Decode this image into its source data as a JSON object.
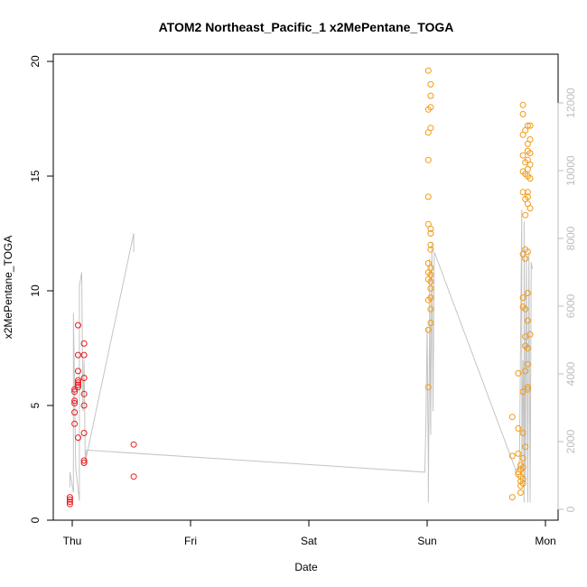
{
  "chart_data": {
    "type": "scatter",
    "title": "ATOM2 Northeast_Pacific_1 x2MePentane_TOGA",
    "xlabel": "Date",
    "ylabel": "x2MePentane_TOGA",
    "x_axis": {
      "type": "date",
      "range": [
        "Thu 00:00",
        "Mon 03:00"
      ],
      "ticks": [
        {
          "label": "Thu",
          "day": 0
        },
        {
          "label": "Fri",
          "day": 1
        },
        {
          "label": "Sat",
          "day": 2
        },
        {
          "label": "Sun",
          "day": 3
        },
        {
          "label": "Mon",
          "day": 4
        }
      ]
    },
    "ylim": [
      0,
      20
    ],
    "yticks": [
      0,
      5,
      10,
      15,
      20
    ],
    "y2lim": [
      0,
      12500
    ],
    "y2ticks": [
      0,
      2000,
      4000,
      6000,
      8000,
      10000,
      12000
    ],
    "colors": {
      "series_red": "#e8191c",
      "series_orange": "#f29a14",
      "secondary_line": "#c4c4c4",
      "secondary_axis": "#bdbdbd"
    },
    "series": [
      {
        "color": "#e8191c",
        "points": [
          {
            "day": -0.02,
            "y": 0.7
          },
          {
            "day": -0.02,
            "y": 0.8
          },
          {
            "day": -0.02,
            "y": 0.9
          },
          {
            "day": -0.02,
            "y": 1.0
          },
          {
            "day": 0.02,
            "y": 4.2
          },
          {
            "day": 0.02,
            "y": 4.7
          },
          {
            "day": 0.02,
            "y": 5.1
          },
          {
            "day": 0.02,
            "y": 5.2
          },
          {
            "day": 0.02,
            "y": 5.6
          },
          {
            "day": 0.02,
            "y": 5.7
          },
          {
            "day": 0.05,
            "y": 3.6
          },
          {
            "day": 0.05,
            "y": 5.8
          },
          {
            "day": 0.05,
            "y": 5.9
          },
          {
            "day": 0.05,
            "y": 6.0
          },
          {
            "day": 0.05,
            "y": 6.1
          },
          {
            "day": 0.05,
            "y": 6.5
          },
          {
            "day": 0.05,
            "y": 7.2
          },
          {
            "day": 0.05,
            "y": 8.5
          },
          {
            "day": 0.1,
            "y": 2.5
          },
          {
            "day": 0.1,
            "y": 2.6
          },
          {
            "day": 0.1,
            "y": 3.8
          },
          {
            "day": 0.1,
            "y": 5.0
          },
          {
            "day": 0.1,
            "y": 5.5
          },
          {
            "day": 0.1,
            "y": 6.2
          },
          {
            "day": 0.1,
            "y": 7.2
          },
          {
            "day": 0.1,
            "y": 7.7
          },
          {
            "day": 0.52,
            "y": 1.9
          },
          {
            "day": 0.52,
            "y": 3.3
          }
        ]
      },
      {
        "color": "#f29a14",
        "points": [
          {
            "day": 3.01,
            "y": 5.8
          },
          {
            "day": 3.01,
            "y": 8.3
          },
          {
            "day": 3.01,
            "y": 9.6
          },
          {
            "day": 3.01,
            "y": 10.5
          },
          {
            "day": 3.01,
            "y": 10.8
          },
          {
            "day": 3.01,
            "y": 11.2
          },
          {
            "day": 3.01,
            "y": 12.9
          },
          {
            "day": 3.01,
            "y": 14.1
          },
          {
            "day": 3.01,
            "y": 15.7
          },
          {
            "day": 3.01,
            "y": 16.9
          },
          {
            "day": 3.01,
            "y": 17.9
          },
          {
            "day": 3.01,
            "y": 19.6
          },
          {
            "day": 3.03,
            "y": 8.6
          },
          {
            "day": 3.03,
            "y": 9.2
          },
          {
            "day": 3.03,
            "y": 9.7
          },
          {
            "day": 3.03,
            "y": 10.1
          },
          {
            "day": 3.03,
            "y": 10.4
          },
          {
            "day": 3.03,
            "y": 10.7
          },
          {
            "day": 3.03,
            "y": 11.0
          },
          {
            "day": 3.03,
            "y": 11.8
          },
          {
            "day": 3.03,
            "y": 12.0
          },
          {
            "day": 3.03,
            "y": 12.5
          },
          {
            "day": 3.03,
            "y": 12.7
          },
          {
            "day": 3.03,
            "y": 17.1
          },
          {
            "day": 3.03,
            "y": 18.0
          },
          {
            "day": 3.03,
            "y": 18.5
          },
          {
            "day": 3.03,
            "y": 19.0
          },
          {
            "day": 3.72,
            "y": 1.0
          },
          {
            "day": 3.72,
            "y": 2.8
          },
          {
            "day": 3.72,
            "y": 4.5
          },
          {
            "day": 3.77,
            "y": 2.0
          },
          {
            "day": 3.77,
            "y": 2.1
          },
          {
            "day": 3.77,
            "y": 2.9
          },
          {
            "day": 3.77,
            "y": 4.0
          },
          {
            "day": 3.77,
            "y": 6.4
          },
          {
            "day": 3.79,
            "y": 1.2
          },
          {
            "day": 3.79,
            "y": 1.5
          },
          {
            "day": 3.79,
            "y": 1.7
          },
          {
            "day": 3.79,
            "y": 1.9
          },
          {
            "day": 3.79,
            "y": 2.2
          },
          {
            "day": 3.79,
            "y": 2.4
          },
          {
            "day": 3.81,
            "y": 1.6
          },
          {
            "day": 3.81,
            "y": 1.8
          },
          {
            "day": 3.81,
            "y": 2.3
          },
          {
            "day": 3.81,
            "y": 2.7
          },
          {
            "day": 3.81,
            "y": 3.8
          },
          {
            "day": 3.81,
            "y": 5.6
          },
          {
            "day": 3.81,
            "y": 9.3
          },
          {
            "day": 3.81,
            "y": 9.7
          },
          {
            "day": 3.81,
            "y": 11.6
          },
          {
            "day": 3.81,
            "y": 14.3
          },
          {
            "day": 3.81,
            "y": 15.2
          },
          {
            "day": 3.81,
            "y": 15.9
          },
          {
            "day": 3.81,
            "y": 16.8
          },
          {
            "day": 3.81,
            "y": 17.7
          },
          {
            "day": 3.81,
            "y": 18.1
          },
          {
            "day": 3.83,
            "y": 3.2
          },
          {
            "day": 3.83,
            "y": 6.5
          },
          {
            "day": 3.83,
            "y": 7.6
          },
          {
            "day": 3.83,
            "y": 8.0
          },
          {
            "day": 3.83,
            "y": 9.2
          },
          {
            "day": 3.83,
            "y": 11.4
          },
          {
            "day": 3.83,
            "y": 11.8
          },
          {
            "day": 3.83,
            "y": 13.3
          },
          {
            "day": 3.83,
            "y": 14.0
          },
          {
            "day": 3.83,
            "y": 15.1
          },
          {
            "day": 3.83,
            "y": 15.6
          },
          {
            "day": 3.83,
            "y": 17.0
          },
          {
            "day": 3.85,
            "y": 5.7
          },
          {
            "day": 3.85,
            "y": 5.8
          },
          {
            "day": 3.85,
            "y": 6.8
          },
          {
            "day": 3.85,
            "y": 7.5
          },
          {
            "day": 3.85,
            "y": 8.7
          },
          {
            "day": 3.85,
            "y": 9.9
          },
          {
            "day": 3.85,
            "y": 11.7
          },
          {
            "day": 3.85,
            "y": 13.8
          },
          {
            "day": 3.85,
            "y": 14.1
          },
          {
            "day": 3.85,
            "y": 14.3
          },
          {
            "day": 3.85,
            "y": 15.0
          },
          {
            "day": 3.85,
            "y": 15.3
          },
          {
            "day": 3.85,
            "y": 15.7
          },
          {
            "day": 3.85,
            "y": 16.1
          },
          {
            "day": 3.85,
            "y": 16.4
          },
          {
            "day": 3.85,
            "y": 17.2
          },
          {
            "day": 3.87,
            "y": 8.1
          },
          {
            "day": 3.87,
            "y": 13.6
          },
          {
            "day": 3.87,
            "y": 14.9
          },
          {
            "day": 3.87,
            "y": 15.5
          },
          {
            "day": 3.87,
            "y": 16.0
          },
          {
            "day": 3.87,
            "y": 16.6
          },
          {
            "day": 3.87,
            "y": 17.2
          }
        ]
      }
    ],
    "secondary_line": {
      "color": "#c4c4c4",
      "points": [
        {
          "day": -0.02,
          "y2": 650
        },
        {
          "day": -0.02,
          "y2": 1100
        },
        {
          "day": 0.01,
          "y2": 500
        },
        {
          "day": 0.01,
          "y2": 5800
        },
        {
          "day": 0.03,
          "y2": 1200
        },
        {
          "day": 0.06,
          "y2": 250
        },
        {
          "day": 0.06,
          "y2": 6600
        },
        {
          "day": 0.08,
          "y2": 7000
        },
        {
          "day": 0.09,
          "y2": 2900
        },
        {
          "day": 0.1,
          "y2": 4400
        },
        {
          "day": 0.11,
          "y2": 1400
        },
        {
          "day": 0.52,
          "y2": 8150
        },
        {
          "day": 0.52,
          "y2": 7600
        },
        {
          "day": 0.52,
          "y2": 8150
        },
        {
          "day": 0.11,
          "y2": 1400
        },
        {
          "day": 0.12,
          "y2": 1750
        },
        {
          "day": 2.98,
          "y2": 1100
        },
        {
          "day": 2.99,
          "y2": 2600
        },
        {
          "day": 3.0,
          "y2": 5400
        },
        {
          "day": 3.01,
          "y2": 1200
        },
        {
          "day": 3.01,
          "y2": 200
        },
        {
          "day": 3.02,
          "y2": 5000
        },
        {
          "day": 3.02,
          "y2": 7400
        },
        {
          "day": 3.03,
          "y2": 2200
        },
        {
          "day": 3.04,
          "y2": 7900
        },
        {
          "day": 3.05,
          "y2": 2900
        },
        {
          "day": 3.06,
          "y2": 7600
        },
        {
          "day": 3.75,
          "y2": 1150
        },
        {
          "day": 3.78,
          "y2": 1300
        },
        {
          "day": 3.8,
          "y2": 8850
        },
        {
          "day": 3.8,
          "y2": 1000
        },
        {
          "day": 3.81,
          "y2": 4400
        },
        {
          "day": 3.82,
          "y2": 200
        },
        {
          "day": 3.82,
          "y2": 8500
        },
        {
          "day": 3.83,
          "y2": 800
        },
        {
          "day": 3.84,
          "y2": 7500
        },
        {
          "day": 3.85,
          "y2": 200
        },
        {
          "day": 3.86,
          "y2": 7600
        },
        {
          "day": 3.87,
          "y2": 200
        },
        {
          "day": 3.88,
          "y2": 7300
        },
        {
          "day": 3.89,
          "y2": 7100
        }
      ]
    },
    "grid": false,
    "legend": "none"
  }
}
